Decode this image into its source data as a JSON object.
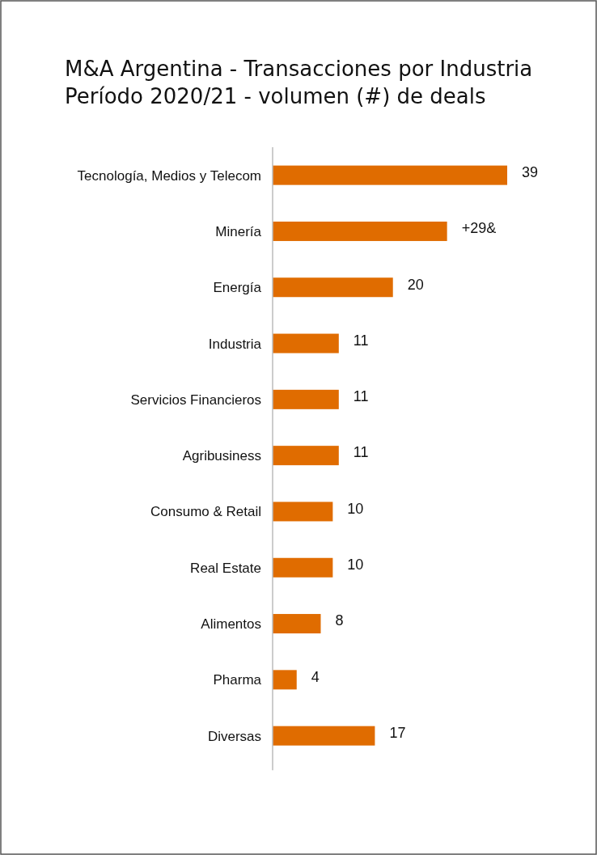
{
  "chart_data": {
    "type": "bar",
    "orientation": "horizontal",
    "title": "M&A Argentina - Transacciones por Industria",
    "subtitle": "Período 2020/21 - volumen (#) de deals",
    "categories": [
      "Tecnología, Medios y Telecom",
      "Minería",
      "Energía",
      "Industria",
      "Servicios Financieros",
      "Agribusiness",
      "Consumo & Retail",
      "Real Estate",
      "Alimentos",
      "Pharma",
      "Diversas"
    ],
    "values": [
      39,
      29,
      20,
      11,
      11,
      11,
      10,
      10,
      8,
      4,
      17
    ],
    "value_labels": [
      "39",
      "+29&",
      "20",
      "11",
      "11",
      "11",
      "10",
      "10",
      "8",
      "4",
      "17"
    ],
    "color": "#e06c00"
  }
}
